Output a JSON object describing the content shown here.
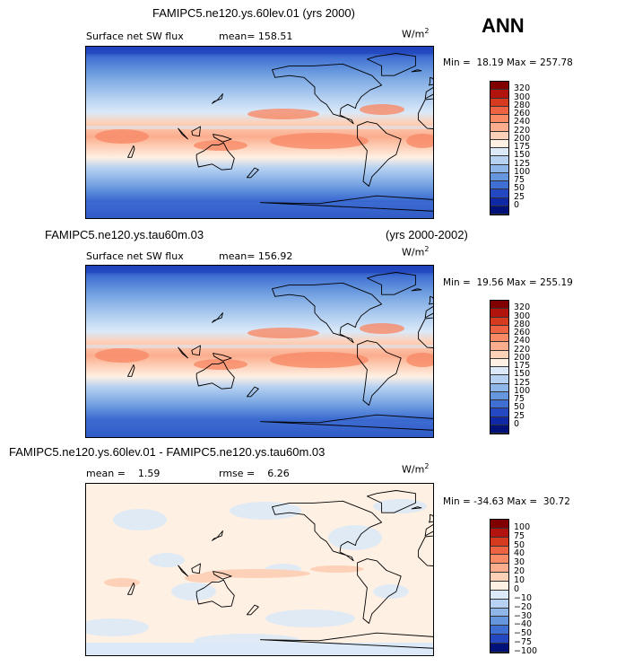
{
  "season": "ANN",
  "panels": [
    {
      "case": "FAMIPC5.ne120.ys.60lev.01",
      "years": "(yrs 2000)",
      "variable": "Surface net SW flux",
      "mean_label": "mean=",
      "mean_value": "158.51",
      "units_base": "W/m",
      "units_exp": "2",
      "min_label": "Min =",
      "min_value": "18.19",
      "max_label": "Max =",
      "max_value": "257.78",
      "colorbar": [
        "320",
        "300",
        "280",
        "260",
        "240",
        "220",
        "200",
        "175",
        "150",
        "125",
        "100",
        "75",
        "50",
        "25",
        "0"
      ]
    },
    {
      "case": "FAMIPC5.ne120.ys.tau60m.03",
      "years": "(yrs 2000-2002)",
      "variable": "Surface net SW flux",
      "mean_label": "mean=",
      "mean_value": "156.92",
      "units_base": "W/m",
      "units_exp": "2",
      "min_label": "Min =",
      "min_value": "19.56",
      "max_label": "Max =",
      "max_value": "255.19",
      "colorbar": [
        "320",
        "300",
        "280",
        "260",
        "240",
        "220",
        "200",
        "175",
        "150",
        "125",
        "100",
        "75",
        "50",
        "25",
        "0"
      ]
    },
    {
      "case": "FAMIPC5.ne120.ys.60lev.01 - FAMIPC5.ne120.ys.tau60m.03",
      "mean_label": "mean =",
      "mean_value": "1.59",
      "rmse_label": "rmse =",
      "rmse_value": "6.26",
      "units_base": "W/m",
      "units_exp": "2",
      "min_label": "Min =",
      "min_value": "-34.63",
      "max_label": "Max =",
      "max_value": "30.72",
      "colorbar": [
        "100",
        "75",
        "50",
        "40",
        "30",
        "20",
        "10",
        "0",
        "−10",
        "−20",
        "−30",
        "−40",
        "−50",
        "−75",
        "−100"
      ]
    }
  ],
  "colors": {
    "abs_scale": [
      "#800000",
      "#b3130d",
      "#d63a1f",
      "#ee6442",
      "#f88a66",
      "#fbad8e",
      "#fdd0b8",
      "#fff0e4",
      "#dbe9f8",
      "#b6d1f1",
      "#8fb6e8",
      "#6696dd",
      "#3f6fd2",
      "#2348c2",
      "#0f28a6",
      "#00117a"
    ],
    "diff_scale": [
      "#800000",
      "#b3130d",
      "#d63a1f",
      "#ee6442",
      "#f88a66",
      "#fbad8e",
      "#fdd0b8",
      "#fff0e4",
      "#dbe9f8",
      "#b6d1f1",
      "#8fb6e8",
      "#6696dd",
      "#3f6fd2",
      "#2348c2",
      "#00117a"
    ]
  },
  "chart_data": [
    {
      "type": "heatmap",
      "title": "FAMIPC5.ne120.ys.60lev.01 (yrs 2000)",
      "subtitle": "Surface net SW flux",
      "units": "W/m2",
      "mean": 158.51,
      "min": 18.19,
      "max": 257.78,
      "contour_levels": [
        0,
        25,
        50,
        75,
        100,
        125,
        150,
        175,
        200,
        220,
        240,
        260,
        280,
        300,
        320
      ]
    },
    {
      "type": "heatmap",
      "title": "FAMIPC5.ne120.ys.tau60m.03 (yrs 2000-2002)",
      "subtitle": "Surface net SW flux",
      "units": "W/m2",
      "mean": 156.92,
      "min": 19.56,
      "max": 255.19,
      "contour_levels": [
        0,
        25,
        50,
        75,
        100,
        125,
        150,
        175,
        200,
        220,
        240,
        260,
        280,
        300,
        320
      ]
    },
    {
      "type": "heatmap",
      "title": "FAMIPC5.ne120.ys.60lev.01 - FAMIPC5.ne120.ys.tau60m.03",
      "units": "W/m2",
      "mean": 1.59,
      "rmse": 6.26,
      "min": -34.63,
      "max": 30.72,
      "contour_levels": [
        -100,
        -75,
        -50,
        -40,
        -30,
        -20,
        -10,
        0,
        10,
        20,
        30,
        40,
        50,
        75,
        100
      ]
    }
  ]
}
